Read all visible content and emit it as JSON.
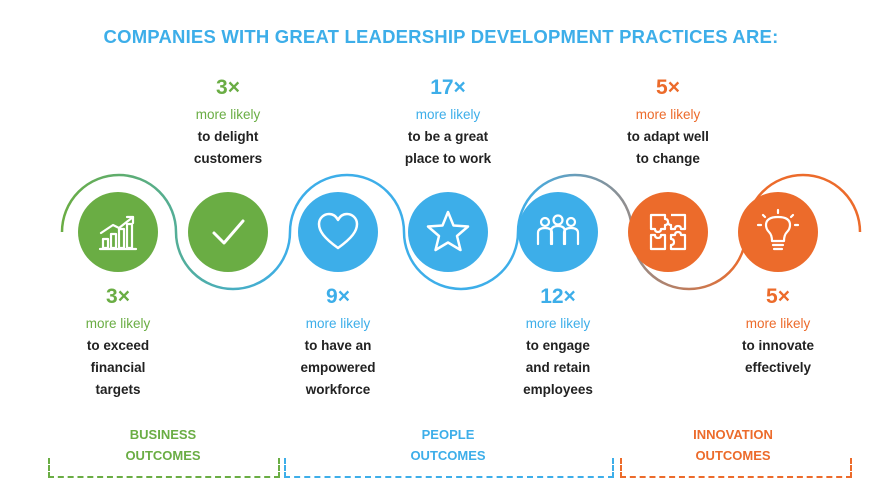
{
  "title": "COMPANIES WITH GREAT LEADERSHIP DEVELOPMENT PRACTICES ARE:",
  "colors": {
    "green": "#6aad44",
    "blue": "#3daee9",
    "orange": "#ec6b2b",
    "text": "#222222"
  },
  "circles": [
    {
      "icon": "chart-growth-icon",
      "color": "#6aad44"
    },
    {
      "icon": "checkmark-icon",
      "color": "#6aad44"
    },
    {
      "icon": "heart-icon",
      "color": "#3daee9"
    },
    {
      "icon": "star-icon",
      "color": "#3daee9"
    },
    {
      "icon": "people-group-icon",
      "color": "#3daee9"
    },
    {
      "icon": "puzzle-icon",
      "color": "#ec6b2b"
    },
    {
      "icon": "lightbulb-icon",
      "color": "#ec6b2b"
    }
  ],
  "stats": [
    {
      "multiplier": "3×",
      "likely": "more likely",
      "line1": "to exceed",
      "line2": "financial",
      "line3": "targets"
    },
    {
      "multiplier": "3×",
      "likely": "more likely",
      "line1": "to delight",
      "line2": "customers",
      "line3": ""
    },
    {
      "multiplier": "9×",
      "likely": "more likely",
      "line1": "to have an",
      "line2": "empowered",
      "line3": "workforce"
    },
    {
      "multiplier": "17×",
      "likely": "more likely",
      "line1": "to be a great",
      "line2": "place to work",
      "line3": ""
    },
    {
      "multiplier": "12×",
      "likely": "more likely",
      "line1": "to engage",
      "line2": "and retain",
      "line3": "employees"
    },
    {
      "multiplier": "5×",
      "likely": "more likely",
      "line1": "to adapt well",
      "line2": "to change",
      "line3": ""
    },
    {
      "multiplier": "5×",
      "likely": "more likely",
      "line1": "to innovate",
      "line2": "effectively",
      "line3": ""
    }
  ],
  "groups": [
    {
      "line1": "BUSINESS",
      "line2": "OUTCOMES"
    },
    {
      "line1": "PEOPLE",
      "line2": "OUTCOMES"
    },
    {
      "line1": "INNOVATION",
      "line2": "OUTCOMES"
    }
  ]
}
